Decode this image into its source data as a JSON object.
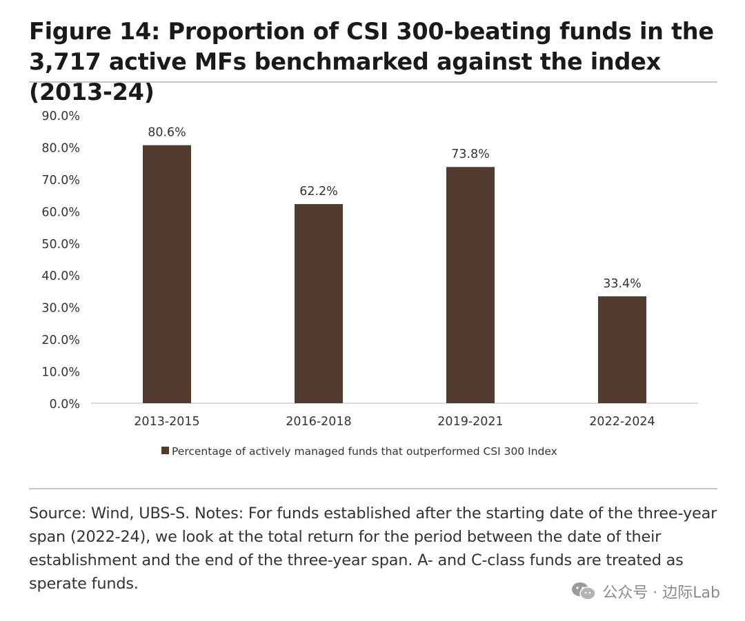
{
  "title": "Figure 14: Proportion of CSI 300-beating funds in the 3,717 active MFs benchmarked against the index (2013-24)",
  "source": "Source: Wind, UBS-S. Notes: For funds established after the starting date of the three-year span (2022-24), we look at the total return for the period between the date of their establishment and the end of the three-year span. A- and C-class funds are treated as sperate funds.",
  "watermark": "公众号 · 边际Lab",
  "colors": {
    "bar": "#523b2f",
    "axis": "#cfcfcf",
    "text": "#333333"
  },
  "chart_data": {
    "type": "bar",
    "categories": [
      "2013-2015",
      "2016-2018",
      "2019-2021",
      "2022-2024"
    ],
    "values": [
      80.6,
      62.2,
      73.8,
      33.4
    ],
    "value_labels": [
      "80.6%",
      "62.2%",
      "73.8%",
      "33.4%"
    ],
    "series_name": "Percentage of actively managed funds that outperformed CSI 300 Index",
    "ylim": [
      0,
      90
    ],
    "yticks": [
      0,
      10,
      20,
      30,
      40,
      50,
      60,
      70,
      80,
      90
    ],
    "ytick_labels": [
      "0.0%",
      "10.0%",
      "20.0%",
      "30.0%",
      "40.0%",
      "50.0%",
      "60.0%",
      "70.0%",
      "80.0%",
      "90.0%"
    ],
    "grid": false,
    "legend_position": "bottom-center"
  }
}
